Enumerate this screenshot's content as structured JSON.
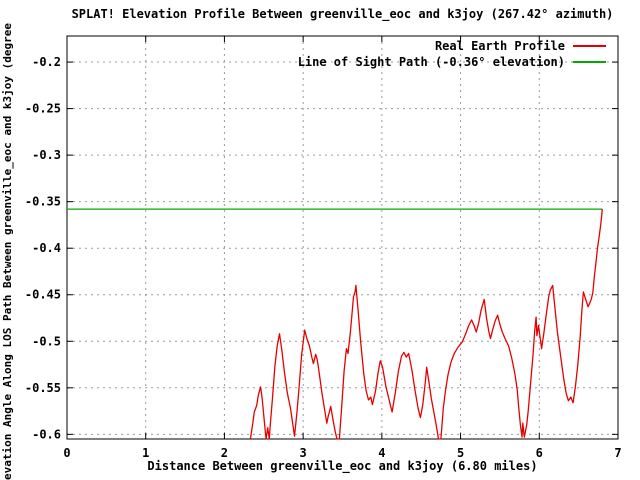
{
  "chart_data": {
    "type": "line",
    "title": "SPLAT! Elevation Profile Between greenville_eoc and k3joy (267.42° azimuth)",
    "xlabel": "Distance Between greenville_eoc and k3joy (6.80 miles)",
    "ylabel": "evation Angle Along LOS Path Between greenville_eoc and k3joy (degree",
    "xlim": [
      0,
      7
    ],
    "ylim": [
      -0.605,
      -0.172
    ],
    "xticks": [
      0,
      1,
      2,
      3,
      4,
      5,
      6,
      7
    ],
    "xtick_labels": [
      "0",
      "1",
      "2",
      "3",
      "4",
      "5",
      "6",
      "7"
    ],
    "yticks": [
      -0.2,
      -0.25,
      -0.3,
      -0.35,
      -0.4,
      -0.45,
      -0.5,
      -0.55,
      -0.6
    ],
    "ytick_labels": [
      "-0.2",
      "-0.25",
      "-0.3",
      "-0.35",
      "-0.4",
      "-0.45",
      "-0.5",
      "-0.55",
      "-0.6"
    ],
    "grid": true,
    "grid_color": "#9a9a9a",
    "frame_color": "#000000",
    "legend_position": "top-right-inside",
    "series": [
      {
        "name": "Real Earth Profile",
        "color": "#e60000",
        "points": [
          [
            2.33,
            -0.605
          ],
          [
            2.36,
            -0.588
          ],
          [
            2.38,
            -0.576
          ],
          [
            2.41,
            -0.569
          ],
          [
            2.43,
            -0.558
          ],
          [
            2.46,
            -0.549
          ],
          [
            2.48,
            -0.562
          ],
          [
            2.5,
            -0.58
          ],
          [
            2.52,
            -0.598
          ],
          [
            2.53,
            -0.605
          ],
          [
            2.55,
            -0.593
          ],
          [
            2.57,
            -0.605
          ],
          [
            2.58,
            -0.592
          ],
          [
            2.61,
            -0.562
          ],
          [
            2.64,
            -0.528
          ],
          [
            2.67,
            -0.505
          ],
          [
            2.7,
            -0.492
          ],
          [
            2.73,
            -0.51
          ],
          [
            2.76,
            -0.532
          ],
          [
            2.8,
            -0.556
          ],
          [
            2.84,
            -0.572
          ],
          [
            2.87,
            -0.59
          ],
          [
            2.89,
            -0.602
          ],
          [
            2.92,
            -0.578
          ],
          [
            2.95,
            -0.548
          ],
          [
            2.98,
            -0.515
          ],
          [
            3.02,
            -0.488
          ],
          [
            3.05,
            -0.498
          ],
          [
            3.08,
            -0.505
          ],
          [
            3.11,
            -0.517
          ],
          [
            3.13,
            -0.524
          ],
          [
            3.16,
            -0.514
          ],
          [
            3.18,
            -0.52
          ],
          [
            3.21,
            -0.538
          ],
          [
            3.24,
            -0.556
          ],
          [
            3.27,
            -0.572
          ],
          [
            3.3,
            -0.588
          ],
          [
            3.32,
            -0.58
          ],
          [
            3.33,
            -0.577
          ],
          [
            3.35,
            -0.57
          ],
          [
            3.38,
            -0.585
          ],
          [
            3.41,
            -0.598
          ],
          [
            3.43,
            -0.605
          ],
          [
            3.46,
            -0.605
          ],
          [
            3.49,
            -0.57
          ],
          [
            3.52,
            -0.532
          ],
          [
            3.55,
            -0.508
          ],
          [
            3.57,
            -0.513
          ],
          [
            3.6,
            -0.49
          ],
          [
            3.63,
            -0.462
          ],
          [
            3.64,
            -0.452
          ],
          [
            3.66,
            -0.447
          ],
          [
            3.67,
            -0.44
          ],
          [
            3.7,
            -0.468
          ],
          [
            3.73,
            -0.5
          ],
          [
            3.77,
            -0.535
          ],
          [
            3.8,
            -0.553
          ],
          [
            3.83,
            -0.563
          ],
          [
            3.86,
            -0.56
          ],
          [
            3.88,
            -0.568
          ],
          [
            3.92,
            -0.553
          ],
          [
            3.95,
            -0.535
          ],
          [
            3.98,
            -0.521
          ],
          [
            4.01,
            -0.528
          ],
          [
            4.05,
            -0.548
          ],
          [
            4.09,
            -0.562
          ],
          [
            4.13,
            -0.576
          ],
          [
            4.17,
            -0.556
          ],
          [
            4.21,
            -0.532
          ],
          [
            4.25,
            -0.516
          ],
          [
            4.28,
            -0.512
          ],
          [
            4.31,
            -0.517
          ],
          [
            4.34,
            -0.513
          ],
          [
            4.38,
            -0.53
          ],
          [
            4.42,
            -0.552
          ],
          [
            4.46,
            -0.572
          ],
          [
            4.49,
            -0.582
          ],
          [
            4.52,
            -0.568
          ],
          [
            4.55,
            -0.545
          ],
          [
            4.57,
            -0.528
          ],
          [
            4.6,
            -0.545
          ],
          [
            4.63,
            -0.562
          ],
          [
            4.66,
            -0.576
          ],
          [
            4.69,
            -0.59
          ],
          [
            4.72,
            -0.605
          ],
          [
            4.75,
            -0.605
          ],
          [
            4.78,
            -0.572
          ],
          [
            4.81,
            -0.552
          ],
          [
            4.84,
            -0.536
          ],
          [
            4.88,
            -0.522
          ],
          [
            4.92,
            -0.513
          ],
          [
            4.97,
            -0.506
          ],
          [
            5.02,
            -0.501
          ],
          [
            5.06,
            -0.493
          ],
          [
            5.1,
            -0.484
          ],
          [
            5.14,
            -0.477
          ],
          [
            5.17,
            -0.483
          ],
          [
            5.2,
            -0.49
          ],
          [
            5.23,
            -0.48
          ],
          [
            5.26,
            -0.467
          ],
          [
            5.3,
            -0.455
          ],
          [
            5.33,
            -0.475
          ],
          [
            5.36,
            -0.49
          ],
          [
            5.38,
            -0.497
          ],
          [
            5.41,
            -0.487
          ],
          [
            5.44,
            -0.478
          ],
          [
            5.47,
            -0.472
          ],
          [
            5.5,
            -0.482
          ],
          [
            5.53,
            -0.49
          ],
          [
            5.57,
            -0.498
          ],
          [
            5.61,
            -0.505
          ],
          [
            5.65,
            -0.518
          ],
          [
            5.69,
            -0.535
          ],
          [
            5.72,
            -0.552
          ],
          [
            5.74,
            -0.572
          ],
          [
            5.76,
            -0.59
          ],
          [
            5.78,
            -0.603
          ],
          [
            5.79,
            -0.588
          ],
          [
            5.81,
            -0.603
          ],
          [
            5.84,
            -0.59
          ],
          [
            5.86,
            -0.574
          ],
          [
            5.89,
            -0.545
          ],
          [
            5.92,
            -0.515
          ],
          [
            5.94,
            -0.49
          ],
          [
            5.96,
            -0.474
          ],
          [
            5.97,
            -0.494
          ],
          [
            5.99,
            -0.483
          ],
          [
            6.01,
            -0.496
          ],
          [
            6.03,
            -0.508
          ],
          [
            6.06,
            -0.49
          ],
          [
            6.09,
            -0.47
          ],
          [
            6.12,
            -0.452
          ],
          [
            6.14,
            -0.445
          ],
          [
            6.17,
            -0.44
          ],
          [
            6.2,
            -0.465
          ],
          [
            6.23,
            -0.49
          ],
          [
            6.27,
            -0.515
          ],
          [
            6.31,
            -0.54
          ],
          [
            6.34,
            -0.555
          ],
          [
            6.37,
            -0.564
          ],
          [
            6.4,
            -0.56
          ],
          [
            6.43,
            -0.566
          ],
          [
            6.46,
            -0.548
          ],
          [
            6.49,
            -0.524
          ],
          [
            6.52,
            -0.495
          ],
          [
            6.54,
            -0.468
          ],
          [
            6.56,
            -0.447
          ],
          [
            6.59,
            -0.455
          ],
          [
            6.62,
            -0.463
          ],
          [
            6.64,
            -0.459
          ],
          [
            6.66,
            -0.455
          ],
          [
            6.68,
            -0.448
          ],
          [
            6.7,
            -0.43
          ],
          [
            6.72,
            -0.415
          ],
          [
            6.74,
            -0.4
          ],
          [
            6.76,
            -0.388
          ],
          [
            6.78,
            -0.375
          ],
          [
            6.8,
            -0.358
          ]
        ]
      },
      {
        "name": "Line of Sight Path (-0.36° elevation)",
        "color": "#00aa00",
        "points": [
          [
            0,
            -0.358
          ],
          [
            6.8,
            -0.358
          ]
        ]
      }
    ]
  }
}
